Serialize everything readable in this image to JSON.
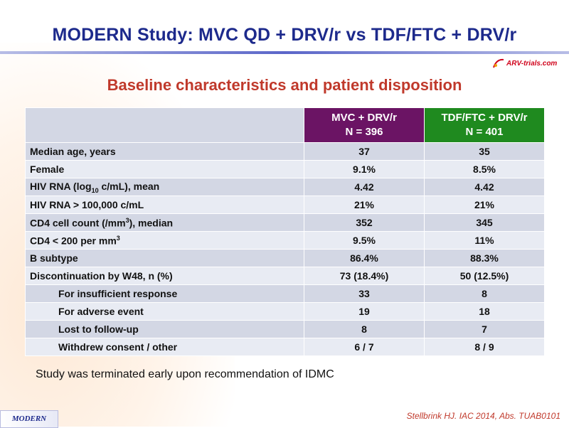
{
  "title": "MODERN Study: MVC QD + DRV/r vs TDF/FTC + DRV/r",
  "logo": {
    "icon": "arv-trials-logo",
    "text": "ARV-trials.com"
  },
  "subtitle": "Baseline characteristics and patient disposition",
  "table": {
    "header": {
      "mvc_line1": "MVC + DRV/r",
      "mvc_line2": "N = 396",
      "tdf_line1": "TDF/FTC + DRV/r",
      "tdf_line2": "N = 401"
    },
    "rows": {
      "age": {
        "label": "Median age, years",
        "mvc": "37",
        "tdf": "35"
      },
      "female": {
        "label": "Female",
        "mvc": "9.1%",
        "tdf": "8.5%"
      },
      "rna_mean": {
        "label_pre": "HIV RNA (log",
        "label_sub": "10",
        "label_post": " c/mL), mean",
        "mvc": "4.42",
        "tdf": "4.42"
      },
      "rna_high": {
        "label": "HIV RNA > 100,000 c/mL",
        "mvc": "21%",
        "tdf": "21%"
      },
      "cd4": {
        "label_pre": "CD4 cell count (/mm",
        "label_sup": "3",
        "label_post": "), median",
        "mvc": "352",
        "tdf": "345"
      },
      "cd4_low": {
        "label_pre": "CD4 < 200 per mm",
        "label_sup": "3",
        "mvc": "9.5%",
        "tdf": "11%"
      },
      "subtype": {
        "label": "B subtype",
        "mvc": "86.4%",
        "tdf": "88.3%"
      },
      "disc": {
        "label": "Discontinuation by W48, n (%)",
        "mvc": "73 (18.4%)",
        "tdf": "50 (12.5%)"
      },
      "insuff": {
        "label": "For insufficient response",
        "mvc": "33",
        "tdf": "8"
      },
      "adverse": {
        "label": "For adverse event",
        "mvc": "19",
        "tdf": "18"
      },
      "lost": {
        "label": "Lost to follow-up",
        "mvc": "8",
        "tdf": "7"
      },
      "withdrew": {
        "label": "Withdrew consent / other",
        "mvc": "6 / 7",
        "tdf": "8 / 9"
      }
    }
  },
  "note": "Study was terminated early upon recommendation of IDMC",
  "footer_tag": "MODERN",
  "citation": "Stellbrink HJ. IAC 2014, Abs. TUAB0101",
  "colors": {
    "title": "#1d2a8c",
    "subtitle": "#c0392b",
    "mvc_header": "#6b1464",
    "tdf_header": "#1f8a1f"
  }
}
